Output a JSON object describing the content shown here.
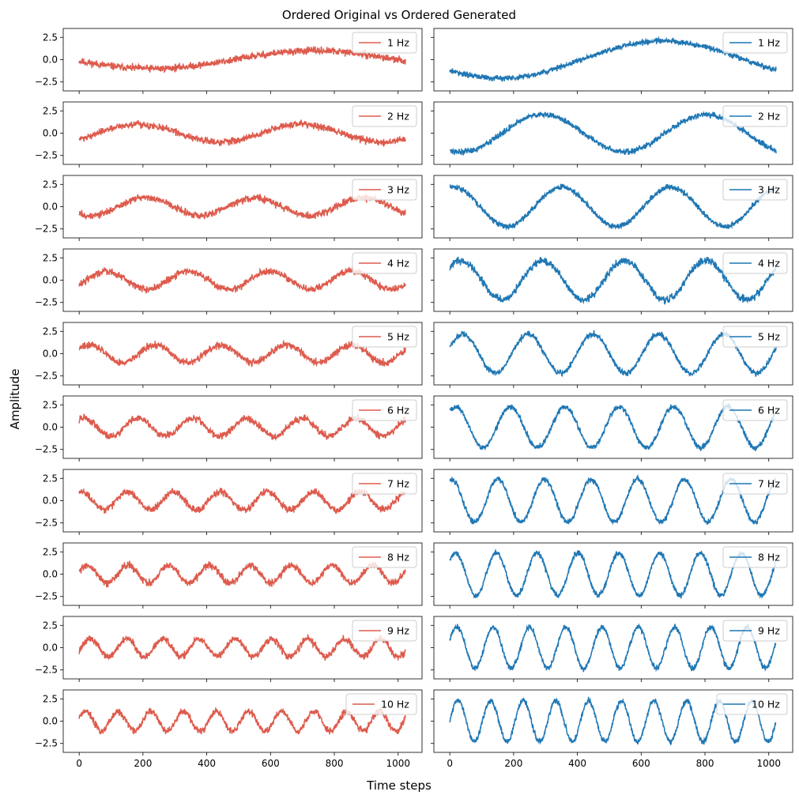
{
  "figure": {
    "title": "Ordered Original vs Ordered Generated",
    "xlabel": "Time steps",
    "ylabel": "Amplitude"
  },
  "colors": {
    "original": "#dd5b4d",
    "generated": "#1f77b4"
  },
  "chart_data": {
    "type": "line",
    "layout": "10 rows x 2 columns of line subplots, shared x and y axes",
    "grid": false,
    "legend_position": "upper right",
    "xlim": [
      -50,
      1075
    ],
    "ylim": [
      -3.5,
      3.5
    ],
    "x_ticks": [
      0,
      200,
      400,
      600,
      800,
      1000
    ],
    "x_tick_labels": [
      "0",
      "200",
      "400",
      "600",
      "800",
      "1000"
    ],
    "y_ticks": [
      2.5,
      0.0,
      -2.5
    ],
    "y_tick_labels": [
      "2.5",
      "0.0",
      "−2.5"
    ],
    "n_points": 1024,
    "columns": [
      {
        "role": "original",
        "color": "#dd5b4d",
        "panels": [
          {
            "legend": "1 Hz",
            "cycles": 1,
            "amplitude": 1.0,
            "phase_deg": 190,
            "noise": 0.28
          },
          {
            "legend": "2 Hz",
            "cycles": 2,
            "amplitude": 1.0,
            "phase_deg": 320,
            "noise": 0.28
          },
          {
            "legend": "3 Hz",
            "cycles": 3,
            "amplitude": 1.0,
            "phase_deg": 230,
            "noise": 0.28
          },
          {
            "legend": "4 Hz",
            "cycles": 4,
            "amplitude": 1.0,
            "phase_deg": 330,
            "noise": 0.28
          },
          {
            "legend": "5 Hz",
            "cycles": 5,
            "amplitude": 1.0,
            "phase_deg": 30,
            "noise": 0.28
          },
          {
            "legend": "6 Hz",
            "cycles": 6,
            "amplitude": 1.0,
            "phase_deg": 60,
            "noise": 0.28
          },
          {
            "legend": "7 Hz",
            "cycles": 7,
            "amplitude": 1.0,
            "phase_deg": 80,
            "noise": 0.28
          },
          {
            "legend": "8 Hz",
            "cycles": 8,
            "amplitude": 1.0,
            "phase_deg": 20,
            "noise": 0.28
          },
          {
            "legend": "9 Hz",
            "cycles": 9,
            "amplitude": 1.0,
            "phase_deg": 340,
            "noise": 0.28
          },
          {
            "legend": "10 Hz",
            "cycles": 10,
            "amplitude": 1.1,
            "phase_deg": 20,
            "noise": 0.28
          }
        ]
      },
      {
        "role": "generated",
        "color": "#1f77b4",
        "panels": [
          {
            "legend": "1 Hz",
            "cycles": 1,
            "amplitude": 2.1,
            "phase_deg": 215,
            "noise": 0.22
          },
          {
            "legend": "2 Hz",
            "cycles": 2,
            "amplitude": 2.1,
            "phase_deg": 245,
            "noise": 0.22
          },
          {
            "legend": "3 Hz",
            "cycles": 3,
            "amplitude": 2.2,
            "phase_deg": 80,
            "noise": 0.22
          },
          {
            "legend": "4 Hz",
            "cycles": 4,
            "amplitude": 2.2,
            "phase_deg": 40,
            "noise": 0.3
          },
          {
            "legend": "5 Hz",
            "cycles": 5,
            "amplitude": 2.2,
            "phase_deg": 20,
            "noise": 0.22
          },
          {
            "legend": "6 Hz",
            "cycles": 6,
            "amplitude": 2.3,
            "phase_deg": 50,
            "noise": 0.22
          },
          {
            "legend": "7 Hz",
            "cycles": 7,
            "amplitude": 2.4,
            "phase_deg": 80,
            "noise": 0.22
          },
          {
            "legend": "8 Hz",
            "cycles": 8,
            "amplitude": 2.4,
            "phase_deg": 40,
            "noise": 0.22
          },
          {
            "legend": "9 Hz",
            "cycles": 9,
            "amplitude": 2.3,
            "phase_deg": 20,
            "noise": 0.22
          },
          {
            "legend": "10 Hz",
            "cycles": 10,
            "amplitude": 2.3,
            "phase_deg": 0,
            "noise": 0.22
          }
        ]
      }
    ]
  }
}
